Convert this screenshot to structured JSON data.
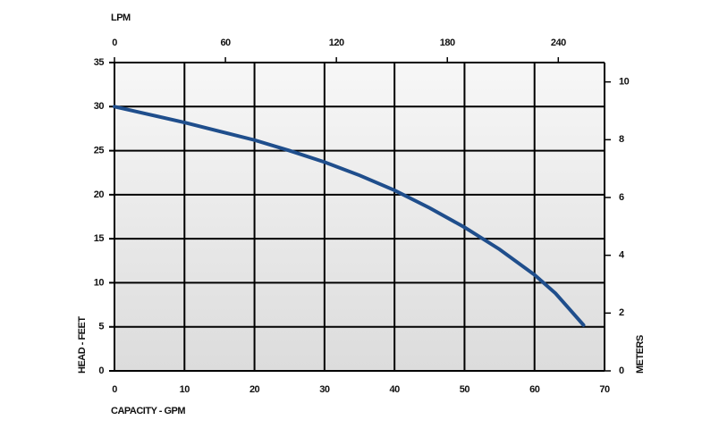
{
  "chart_data": {
    "type": "line",
    "x_label": "CAPACITY - GPM",
    "y_label": "HEAD - FEET",
    "x2_label": "LPM",
    "y2_label": "METERS",
    "x": [
      0,
      5,
      10,
      15,
      20,
      25,
      30,
      35,
      40,
      45,
      50,
      55,
      60,
      63,
      67
    ],
    "series": [
      {
        "color": "#1f4e8c",
        "values": [
          30,
          29.1,
          28.2,
          27.2,
          26.2,
          25.0,
          23.7,
          22.2,
          20.5,
          18.5,
          16.3,
          13.8,
          10.9,
          8.8,
          5.2
        ]
      }
    ],
    "xlim": [
      0,
      70
    ],
    "xticks": [
      0,
      10,
      20,
      30,
      40,
      50,
      60,
      70
    ],
    "ylim": [
      0,
      35
    ],
    "yticks": [
      0,
      5,
      10,
      15,
      20,
      25,
      30,
      35
    ],
    "x2lim": [
      0,
      265
    ],
    "x2ticks": [
      0,
      60,
      120,
      180,
      240
    ],
    "y2lim": [
      0,
      10.67
    ],
    "y2ticks": [
      0,
      2,
      4,
      6,
      8,
      10
    ],
    "grid": true
  }
}
